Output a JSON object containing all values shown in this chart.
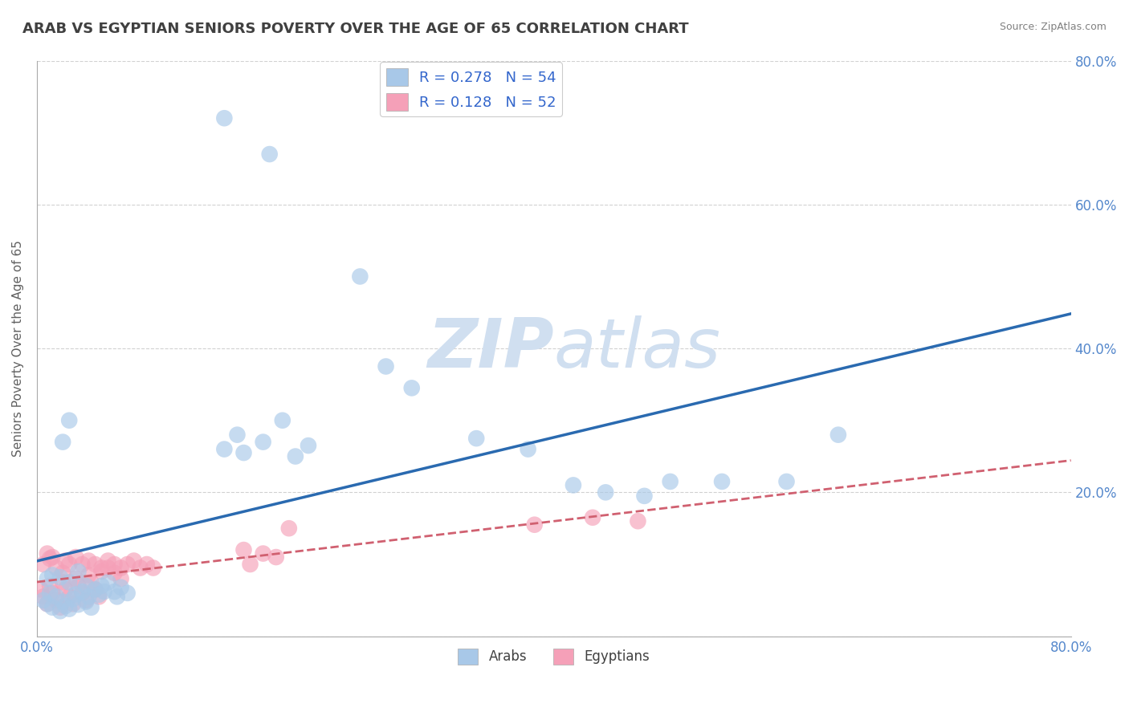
{
  "title": "ARAB VS EGYPTIAN SENIORS POVERTY OVER THE AGE OF 65 CORRELATION CHART",
  "source": "Source: ZipAtlas.com",
  "ylabel": "Seniors Poverty Over the Age of 65",
  "xlim": [
    0.0,
    0.8
  ],
  "ylim": [
    0.0,
    0.8
  ],
  "xticks": [
    0.0,
    0.1,
    0.2,
    0.3,
    0.4,
    0.5,
    0.6,
    0.7,
    0.8
  ],
  "xticklabels_left": "0.0%",
  "xticklabels_right": "80.0%",
  "yticks_right": [
    0.2,
    0.4,
    0.6,
    0.8
  ],
  "yticklabels_right": [
    "20.0%",
    "40.0%",
    "60.0%",
    "80.0%"
  ],
  "arab_R": 0.278,
  "arab_N": 54,
  "egypt_R": 0.128,
  "egypt_N": 52,
  "arab_color": "#a8c8e8",
  "egypt_color": "#f5a0b8",
  "arab_line_color": "#2a6ab0",
  "egypt_line_color": "#d06070",
  "watermark_color": "#d0dff0",
  "background_color": "#ffffff",
  "grid_color": "#cccccc",
  "title_color": "#404040",
  "tick_label_color": "#5588cc",
  "arab_x": [
    0.005,
    0.008,
    0.01,
    0.012,
    0.015,
    0.018,
    0.02,
    0.022,
    0.025,
    0.028,
    0.03,
    0.032,
    0.035,
    0.038,
    0.04,
    0.042,
    0.045,
    0.048,
    0.05,
    0.052,
    0.055,
    0.06,
    0.062,
    0.065,
    0.07,
    0.008,
    0.012,
    0.018,
    0.025,
    0.032,
    0.038,
    0.145,
    0.155,
    0.16,
    0.175,
    0.19,
    0.2,
    0.21,
    0.25,
    0.27,
    0.29,
    0.34,
    0.38,
    0.415,
    0.44,
    0.47,
    0.49,
    0.53,
    0.58,
    0.62,
    0.145,
    0.18,
    0.02,
    0.025
  ],
  "arab_y": [
    0.05,
    0.045,
    0.06,
    0.04,
    0.055,
    0.035,
    0.048,
    0.042,
    0.038,
    0.052,
    0.058,
    0.044,
    0.062,
    0.048,
    0.055,
    0.04,
    0.065,
    0.058,
    0.07,
    0.062,
    0.075,
    0.062,
    0.055,
    0.068,
    0.06,
    0.08,
    0.085,
    0.082,
    0.075,
    0.09,
    0.07,
    0.26,
    0.28,
    0.255,
    0.27,
    0.3,
    0.25,
    0.265,
    0.5,
    0.375,
    0.345,
    0.275,
    0.26,
    0.21,
    0.2,
    0.195,
    0.215,
    0.215,
    0.215,
    0.28,
    0.72,
    0.67,
    0.27,
    0.3
  ],
  "egypt_x": [
    0.003,
    0.005,
    0.008,
    0.01,
    0.012,
    0.015,
    0.018,
    0.02,
    0.022,
    0.025,
    0.028,
    0.03,
    0.032,
    0.035,
    0.038,
    0.04,
    0.042,
    0.045,
    0.048,
    0.05,
    0.055,
    0.06,
    0.065,
    0.005,
    0.01,
    0.015,
    0.02,
    0.008,
    0.012,
    0.022,
    0.16,
    0.165,
    0.175,
    0.185,
    0.195,
    0.025,
    0.03,
    0.035,
    0.04,
    0.045,
    0.05,
    0.055,
    0.06,
    0.065,
    0.07,
    0.075,
    0.08,
    0.085,
    0.09,
    0.385,
    0.43,
    0.465
  ],
  "egypt_y": [
    0.065,
    0.055,
    0.045,
    0.07,
    0.06,
    0.05,
    0.04,
    0.075,
    0.065,
    0.055,
    0.045,
    0.08,
    0.07,
    0.06,
    0.05,
    0.085,
    0.075,
    0.065,
    0.055,
    0.09,
    0.095,
    0.088,
    0.08,
    0.1,
    0.108,
    0.095,
    0.088,
    0.115,
    0.11,
    0.105,
    0.12,
    0.1,
    0.115,
    0.11,
    0.15,
    0.1,
    0.11,
    0.1,
    0.105,
    0.1,
    0.095,
    0.105,
    0.1,
    0.095,
    0.1,
    0.105,
    0.095,
    0.1,
    0.095,
    0.155,
    0.165,
    0.16
  ],
  "legend_fontsize": 13,
  "title_fontsize": 13,
  "axis_fontsize": 11,
  "tick_fontsize": 12
}
